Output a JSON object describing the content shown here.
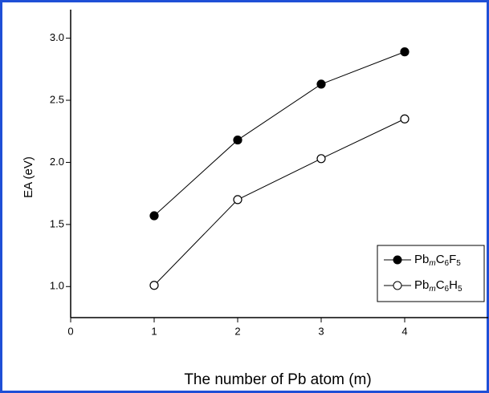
{
  "chart_data": {
    "type": "line",
    "y_label": "EA (eV)",
    "x_label": "The number of Pb atom (m)",
    "x": [
      1,
      2,
      3,
      4
    ],
    "series": [
      {
        "name": "PbmC6F5",
        "color": "#000000",
        "marker": "filled",
        "values": [
          1.57,
          2.18,
          2.63,
          2.89
        ]
      },
      {
        "name": "PbmC6H5",
        "color": "#000000",
        "marker": "open",
        "values": [
          1.01,
          1.7,
          2.03,
          2.35
        ]
      }
    ],
    "xlim": [
      0,
      5
    ],
    "xticks": [
      0,
      1,
      2,
      3,
      4
    ],
    "ylim": [
      0.75,
      3.23
    ],
    "yticks": [
      {
        "value": 1,
        "label": "1.0"
      },
      {
        "value": 1.5,
        "label": "1.5"
      },
      {
        "value": 2,
        "label": "2.0"
      },
      {
        "value": 2.5,
        "label": "2.5"
      },
      {
        "value": 3,
        "label": "3.0"
      }
    ],
    "legend": "lower-right"
  }
}
